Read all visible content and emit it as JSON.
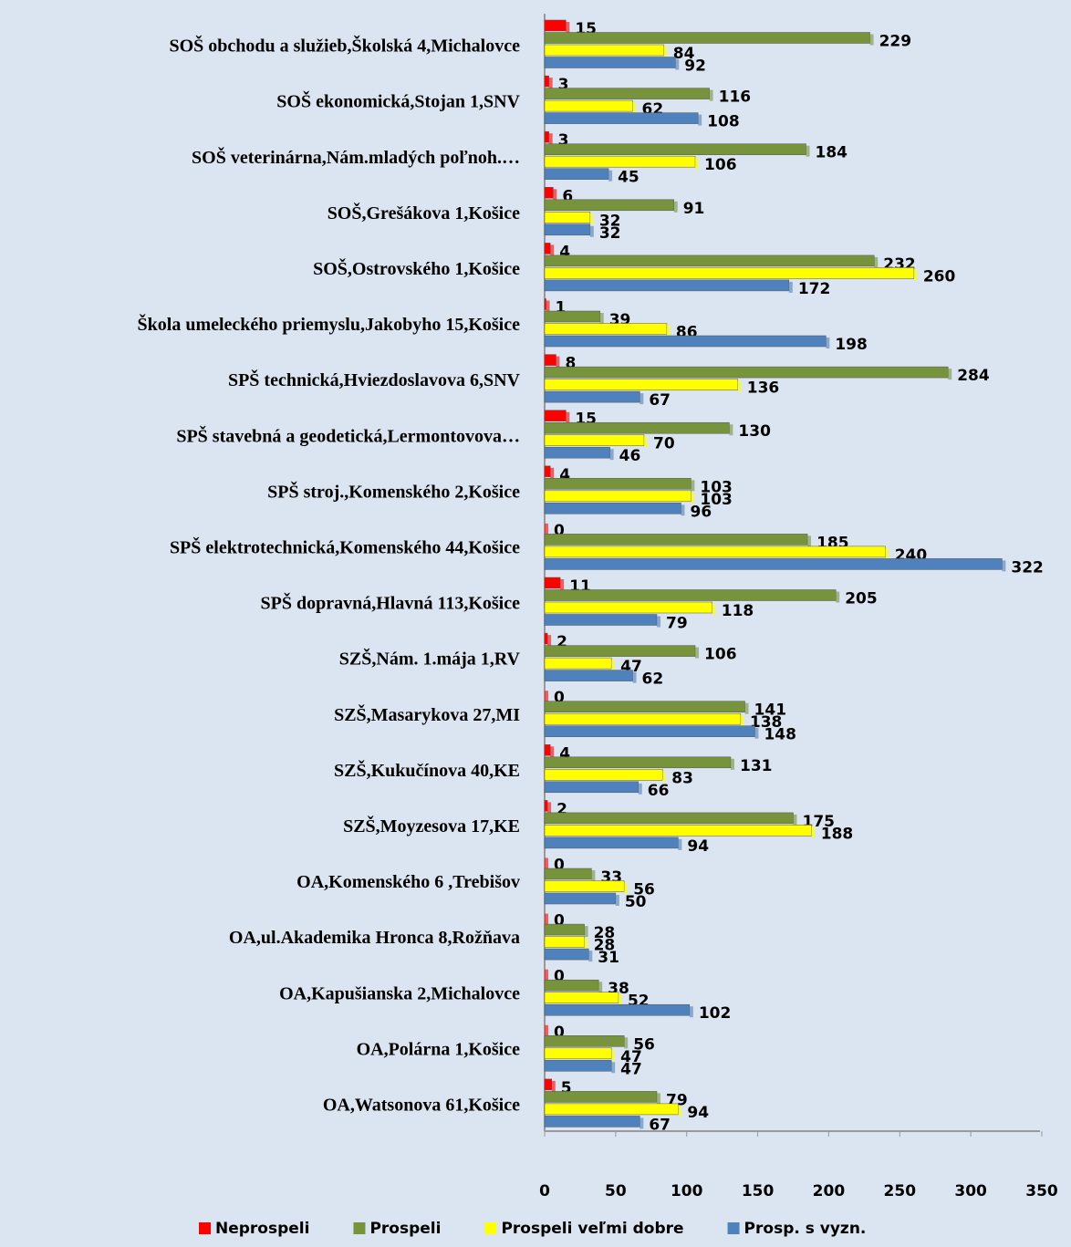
{
  "chart_data": {
    "type": "bar",
    "orientation": "horizontal",
    "categories": [
      "SOŠ obchodu a služieb,Školská 4,Michalovce",
      "SOŠ ekonomická,Stojan 1,SNV",
      "SOŠ veterinárna,Nám.mladých poľnoh.…",
      "SOŠ,Grešákova 1,Košice",
      "SOŠ,Ostrovského 1,Košice",
      "Škola umeleckého priemyslu,Jakobyho 15,Košice",
      "SPŠ technická,Hviezdoslavova 6,SNV",
      "SPŠ stavebná a geodetická,Lermontovova…",
      "SPŠ stroj.,Komenského 2,Košice",
      "SPŠ elektrotechnická,Komenského 44,Košice",
      "SPŠ dopravná,Hlavná 113,Košice",
      "SZŠ,Nám. 1.mája 1,RV",
      "SZŠ,Masarykova 27,MI",
      "SZŠ,Kukučínova 40,KE",
      "SZŠ,Moyzesova 17,KE",
      "OA,Komenského 6 ,Trebišov",
      "OA,ul.Akademika Hronca 8,Rožňava",
      "OA,Kapušianska 2,Michalovce",
      "OA,Polárna 1,Košice",
      "OA,Watsonova 61,Košice"
    ],
    "series": [
      {
        "name": "Neprospeli",
        "color": "#ff0000",
        "values": [
          15,
          3,
          3,
          6,
          4,
          1,
          8,
          15,
          4,
          0,
          11,
          2,
          0,
          4,
          2,
          0,
          0,
          0,
          0,
          5
        ]
      },
      {
        "name": "Prospeli",
        "color": "#77933c",
        "values": [
          229,
          116,
          184,
          91,
          232,
          39,
          284,
          130,
          103,
          185,
          205,
          106,
          141,
          131,
          175,
          33,
          28,
          38,
          56,
          79
        ]
      },
      {
        "name": "Prospeli veľmi dobre",
        "color": "#ffff00",
        "values": [
          84,
          62,
          106,
          32,
          260,
          86,
          136,
          70,
          103,
          240,
          118,
          47,
          138,
          83,
          188,
          56,
          28,
          52,
          47,
          94
        ]
      },
      {
        "name": "Prosp. s vyzn.",
        "color": "#4f81bd",
        "values": [
          92,
          108,
          45,
          32,
          172,
          198,
          67,
          46,
          96,
          322,
          79,
          62,
          148,
          66,
          94,
          50,
          31,
          102,
          47,
          67
        ]
      }
    ],
    "xlim": [
      0,
      350
    ],
    "xticks": [
      0,
      50,
      100,
      150,
      200,
      250,
      300,
      350
    ],
    "legend": "bottom"
  }
}
